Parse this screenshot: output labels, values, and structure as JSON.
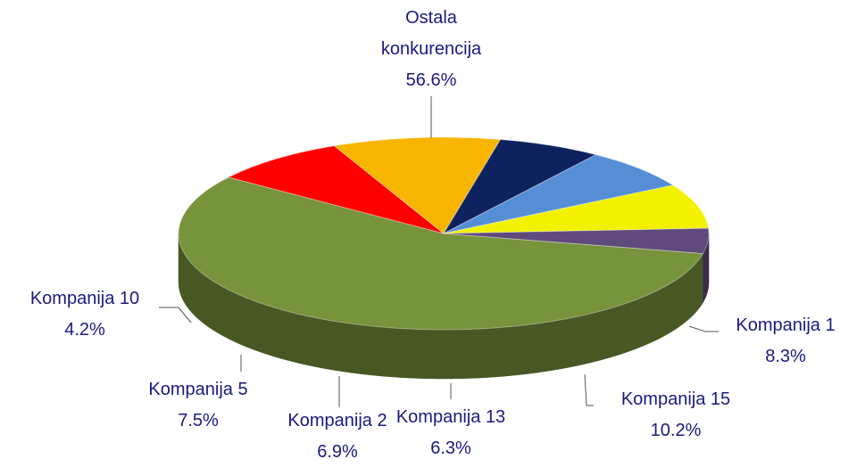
{
  "chart_data": {
    "type": "pie3d",
    "categories": [
      "Ostala konkurencija",
      "Kompanija 1",
      "Kompanija 15",
      "Kompanija 13",
      "Kompanija 2",
      "Kompanija 5",
      "Kompanija 10"
    ],
    "values": [
      56.6,
      8.3,
      10.2,
      6.3,
      6.9,
      7.5,
      4.2
    ],
    "value_labels": [
      "56.6%",
      "8.3%",
      "10.2%",
      "6.3%",
      "6.9%",
      "7.5%",
      "4.2%"
    ],
    "colors": [
      "#77933c",
      "#ff0000",
      "#f7b500",
      "#0f2260",
      "#558ed5",
      "#f2f200",
      "#604a7b"
    ]
  }
}
